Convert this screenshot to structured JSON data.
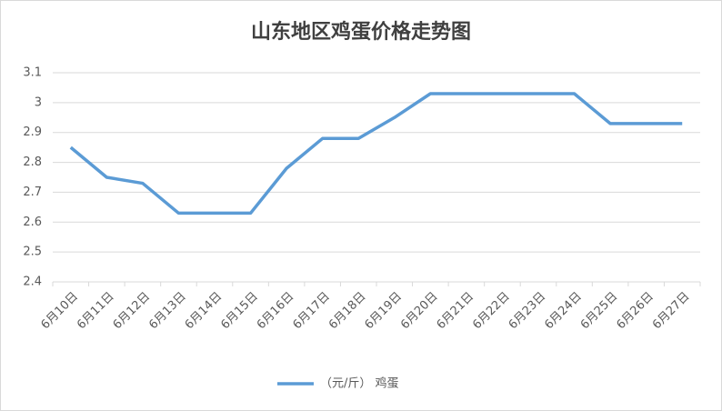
{
  "chart_data": {
    "type": "line",
    "title": "山东地区鸡蛋价格走势图",
    "categories": [
      "6月10日",
      "6月11日",
      "6月12日",
      "6月13日",
      "6月14日",
      "6月15日",
      "6月16日",
      "6月17日",
      "6月18日",
      "6月19日",
      "6月20日",
      "6月21日",
      "6月22日",
      "6月23日",
      "6月24日",
      "6月25日",
      "6月26日",
      "6月27日"
    ],
    "series": [
      {
        "name": "（元/斤） 鸡蛋",
        "color": "#5b9bd5",
        "values": [
          2.85,
          2.75,
          2.73,
          2.63,
          2.63,
          2.63,
          2.78,
          2.88,
          2.88,
          2.95,
          3.03,
          3.03,
          3.03,
          3.03,
          3.03,
          2.93,
          2.93,
          2.93
        ]
      }
    ],
    "ylim": [
      2.4,
      3.1
    ],
    "yticks": [
      2.4,
      2.5,
      2.6,
      2.7,
      2.8,
      2.9,
      3,
      3.1
    ],
    "grid": true,
    "legend": "bottom"
  }
}
